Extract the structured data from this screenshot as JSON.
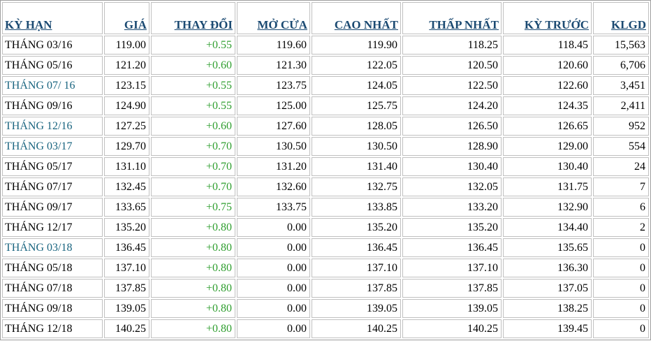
{
  "colors": {
    "header_text": "#1b4a72",
    "change_positive": "#2f9e2f",
    "term_highlight": "#19647f",
    "term_default": "#000000",
    "cell_border": "#c0c0c0",
    "table_frame": "#9e9e9e"
  },
  "table": {
    "columns": [
      {
        "key": "term",
        "label": "KỲ HẠN",
        "align": "left"
      },
      {
        "key": "gia",
        "label": "GIÁ",
        "align": "right"
      },
      {
        "key": "thay_doi",
        "label": "THAY ĐỔI",
        "align": "right"
      },
      {
        "key": "mo_cua",
        "label": "MỞ CỬA",
        "align": "right"
      },
      {
        "key": "cao_nhat",
        "label": "CAO NHẤT",
        "align": "right"
      },
      {
        "key": "thap_nhat",
        "label": "THẤP NHẤT",
        "align": "right"
      },
      {
        "key": "ky_truoc",
        "label": "KỲ TRƯỚC",
        "align": "right"
      },
      {
        "key": "klgd",
        "label": "KLGD",
        "align": "right"
      }
    ],
    "rows": [
      {
        "term": "THÁNG 03/16",
        "gia": "119.00",
        "thay_doi": "+0.55",
        "mo_cua": "119.60",
        "cao_nhat": "119.90",
        "thap_nhat": "118.25",
        "ky_truoc": "118.45",
        "klgd": "15,563",
        "term_highlight": false
      },
      {
        "term": "THÁNG 05/16",
        "gia": "121.20",
        "thay_doi": "+0.60",
        "mo_cua": "121.30",
        "cao_nhat": "122.05",
        "thap_nhat": "120.50",
        "ky_truoc": "120.60",
        "klgd": "6,706",
        "term_highlight": false
      },
      {
        "term": "THÁNG 07/ 16",
        "gia": "123.15",
        "thay_doi": "+0.55",
        "mo_cua": "123.75",
        "cao_nhat": "124.05",
        "thap_nhat": "122.50",
        "ky_truoc": "122.60",
        "klgd": "3,451",
        "term_highlight": true
      },
      {
        "term": "THÁNG 09/16",
        "gia": "124.90",
        "thay_doi": "+0.55",
        "mo_cua": "125.00",
        "cao_nhat": "125.75",
        "thap_nhat": "124.20",
        "ky_truoc": "124.35",
        "klgd": "2,411",
        "term_highlight": false
      },
      {
        "term": "THÁNG 12/16",
        "gia": "127.25",
        "thay_doi": "+0.60",
        "mo_cua": "127.60",
        "cao_nhat": "128.05",
        "thap_nhat": "126.50",
        "ky_truoc": "126.65",
        "klgd": "952",
        "term_highlight": true
      },
      {
        "term": "THÁNG 03/17",
        "gia": "129.70",
        "thay_doi": "+0.70",
        "mo_cua": "130.50",
        "cao_nhat": "130.50",
        "thap_nhat": "128.90",
        "ky_truoc": "129.00",
        "klgd": "554",
        "term_highlight": true
      },
      {
        "term": "THÁNG 05/17",
        "gia": "131.10",
        "thay_doi": "+0.70",
        "mo_cua": "131.20",
        "cao_nhat": "131.40",
        "thap_nhat": "130.40",
        "ky_truoc": "130.40",
        "klgd": "24",
        "term_highlight": false
      },
      {
        "term": "THÁNG 07/17",
        "gia": "132.45",
        "thay_doi": "+0.70",
        "mo_cua": "132.60",
        "cao_nhat": "132.75",
        "thap_nhat": "132.05",
        "ky_truoc": "131.75",
        "klgd": "7",
        "term_highlight": false
      },
      {
        "term": "THÁNG 09/17",
        "gia": "133.65",
        "thay_doi": "+0.75",
        "mo_cua": "133.75",
        "cao_nhat": "133.85",
        "thap_nhat": "133.20",
        "ky_truoc": "132.90",
        "klgd": "6",
        "term_highlight": false
      },
      {
        "term": "THÁNG 12/17",
        "gia": "135.20",
        "thay_doi": "+0.80",
        "mo_cua": "0.00",
        "cao_nhat": "135.20",
        "thap_nhat": "135.20",
        "ky_truoc": "134.40",
        "klgd": "2",
        "term_highlight": false
      },
      {
        "term": "THÁNG 03/18",
        "gia": "136.45",
        "thay_doi": "+0.80",
        "mo_cua": "0.00",
        "cao_nhat": "136.45",
        "thap_nhat": "136.45",
        "ky_truoc": "135.65",
        "klgd": "0",
        "term_highlight": true
      },
      {
        "term": "THÁNG 05/18",
        "gia": "137.10",
        "thay_doi": "+0.80",
        "mo_cua": "0.00",
        "cao_nhat": "137.10",
        "thap_nhat": "137.10",
        "ky_truoc": "136.30",
        "klgd": "0",
        "term_highlight": false
      },
      {
        "term": "THÁNG 07/18",
        "gia": "137.85",
        "thay_doi": "+0.80",
        "mo_cua": "0.00",
        "cao_nhat": "137.85",
        "thap_nhat": "137.85",
        "ky_truoc": "137.05",
        "klgd": "0",
        "term_highlight": false
      },
      {
        "term": "THÁNG 09/18",
        "gia": "139.05",
        "thay_doi": "+0.80",
        "mo_cua": "0.00",
        "cao_nhat": "139.05",
        "thap_nhat": "139.05",
        "ky_truoc": "138.25",
        "klgd": "0",
        "term_highlight": false
      },
      {
        "term": "THÁNG 12/18",
        "gia": "140.25",
        "thay_doi": "+0.80",
        "mo_cua": "0.00",
        "cao_nhat": "140.25",
        "thap_nhat": "140.25",
        "ky_truoc": "139.45",
        "klgd": "0",
        "term_highlight": false
      }
    ]
  }
}
